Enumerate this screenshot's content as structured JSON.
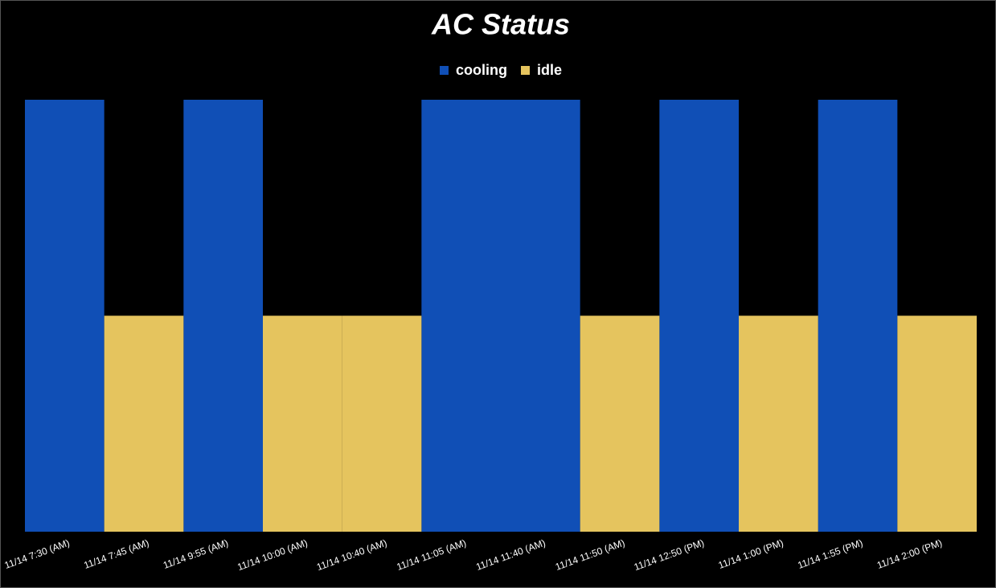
{
  "chart_data": {
    "type": "bar",
    "title": "AC Status",
    "categories": [
      "11/14 7:30 (AM)",
      "11/14 7:45 (AM)",
      "11/14 9:55 (AM)",
      "11/14 10:00 (AM)",
      "11/14 10:40 (AM)",
      "11/14 11:05 (AM)",
      "11/14 11:40 (AM)",
      "11/14 11:50 (AM)",
      "11/14 12:50 (PM)",
      "11/14 1:00 (PM)",
      "11/14 1:55 (PM)",
      "11/14 2:00 (PM)"
    ],
    "series": [
      {
        "name": "cooling",
        "color": "#104fb6",
        "values": [
          1,
          null,
          1,
          null,
          null,
          1,
          1,
          null,
          1,
          null,
          1,
          null
        ]
      },
      {
        "name": "idle",
        "color": "#e5c45e",
        "values": [
          null,
          0.5,
          null,
          0.5,
          0.5,
          null,
          null,
          0.5,
          null,
          0.5,
          null,
          0.5
        ]
      }
    ],
    "ylim": [
      0,
      1
    ],
    "grid": false
  }
}
